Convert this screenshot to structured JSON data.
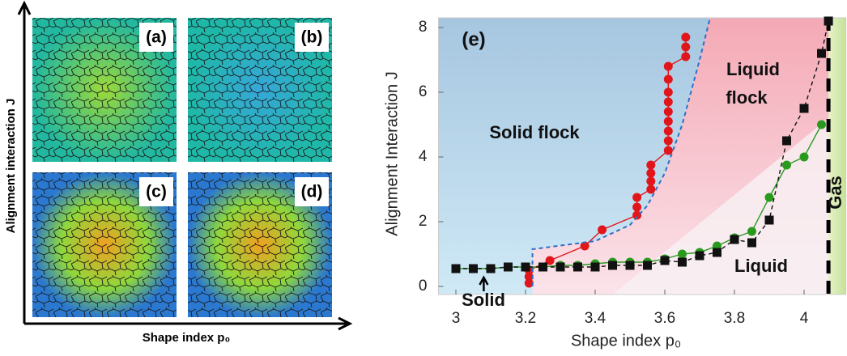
{
  "panels": {
    "labels": [
      "(a)",
      "(b)",
      "(c)",
      "(d)"
    ],
    "y_label": "Alignment interaction J",
    "x_label": "Shape index p₀"
  },
  "chart_data": {
    "type": "scatter",
    "xlabel": "Shape index p₀",
    "ylabel": "Alignment Interaction J",
    "xlim": [
      2.95,
      4.12
    ],
    "ylim": [
      -0.25,
      8.3
    ],
    "xticks": [
      3,
      3.2,
      3.4,
      3.6,
      3.8,
      4
    ],
    "yticks": [
      0,
      2,
      4,
      6,
      8
    ],
    "gas_boundary": 4.07,
    "annotations": [
      "(e)",
      "Solid flock",
      "Liquid",
      "flock",
      "Liquid",
      "Solid",
      "Gas"
    ],
    "series": [
      {
        "color": "#e0161b",
        "marker": "circle",
        "line": "solid",
        "x": [
          3.21,
          3.21,
          3.21,
          3.27,
          3.37,
          3.42,
          3.52,
          3.52,
          3.52,
          3.56,
          3.56,
          3.56,
          3.56,
          3.61,
          3.61,
          3.61,
          3.61,
          3.61,
          3.61,
          3.61,
          3.61,
          3.61,
          3.66,
          3.66,
          3.66
        ],
        "values": [
          0.1,
          0.3,
          0.5,
          0.8,
          1.25,
          1.75,
          2.2,
          2.45,
          2.75,
          3.0,
          3.25,
          3.5,
          3.75,
          4.2,
          4.5,
          4.8,
          5.1,
          5.4,
          5.7,
          6.0,
          6.4,
          6.8,
          7.1,
          7.4,
          7.7
        ]
      },
      {
        "color": "#2a9a1f",
        "marker": "circle",
        "line": "solid",
        "x": [
          3.0,
          3.05,
          3.1,
          3.15,
          3.2,
          3.25,
          3.3,
          3.35,
          3.4,
          3.45,
          3.5,
          3.55,
          3.6,
          3.65,
          3.7,
          3.75,
          3.8,
          3.85,
          3.9,
          3.95,
          4.0,
          4.05
        ],
        "values": [
          0.55,
          0.55,
          0.55,
          0.6,
          0.6,
          0.6,
          0.65,
          0.65,
          0.7,
          0.75,
          0.75,
          0.75,
          0.85,
          1.0,
          1.05,
          1.25,
          1.5,
          1.7,
          2.75,
          3.75,
          4.0,
          5.0
        ]
      },
      {
        "color": "#111111",
        "marker": "square",
        "line": "dashed",
        "x": [
          3.0,
          3.05,
          3.1,
          3.15,
          3.2,
          3.25,
          3.3,
          3.35,
          3.4,
          3.45,
          3.5,
          3.55,
          3.6,
          3.65,
          3.7,
          3.75,
          3.8,
          3.85,
          3.9,
          3.95,
          4.0,
          4.05,
          4.07
        ],
        "values": [
          0.55,
          0.55,
          0.55,
          0.6,
          0.6,
          0.6,
          0.6,
          0.6,
          0.6,
          0.65,
          0.65,
          0.65,
          0.8,
          0.75,
          0.95,
          1.05,
          1.45,
          1.35,
          2.05,
          4.5,
          5.5,
          7.2,
          8.2
        ]
      },
      {
        "color": "#2f6fc4",
        "marker": "none",
        "line": "dashed",
        "x": [
          3.22,
          3.22,
          3.4,
          3.5,
          3.55,
          3.6,
          3.65,
          3.7,
          3.73
        ],
        "values": [
          0,
          1.15,
          1.4,
          1.9,
          2.5,
          3.5,
          5.0,
          7.0,
          8.3
        ]
      }
    ]
  }
}
